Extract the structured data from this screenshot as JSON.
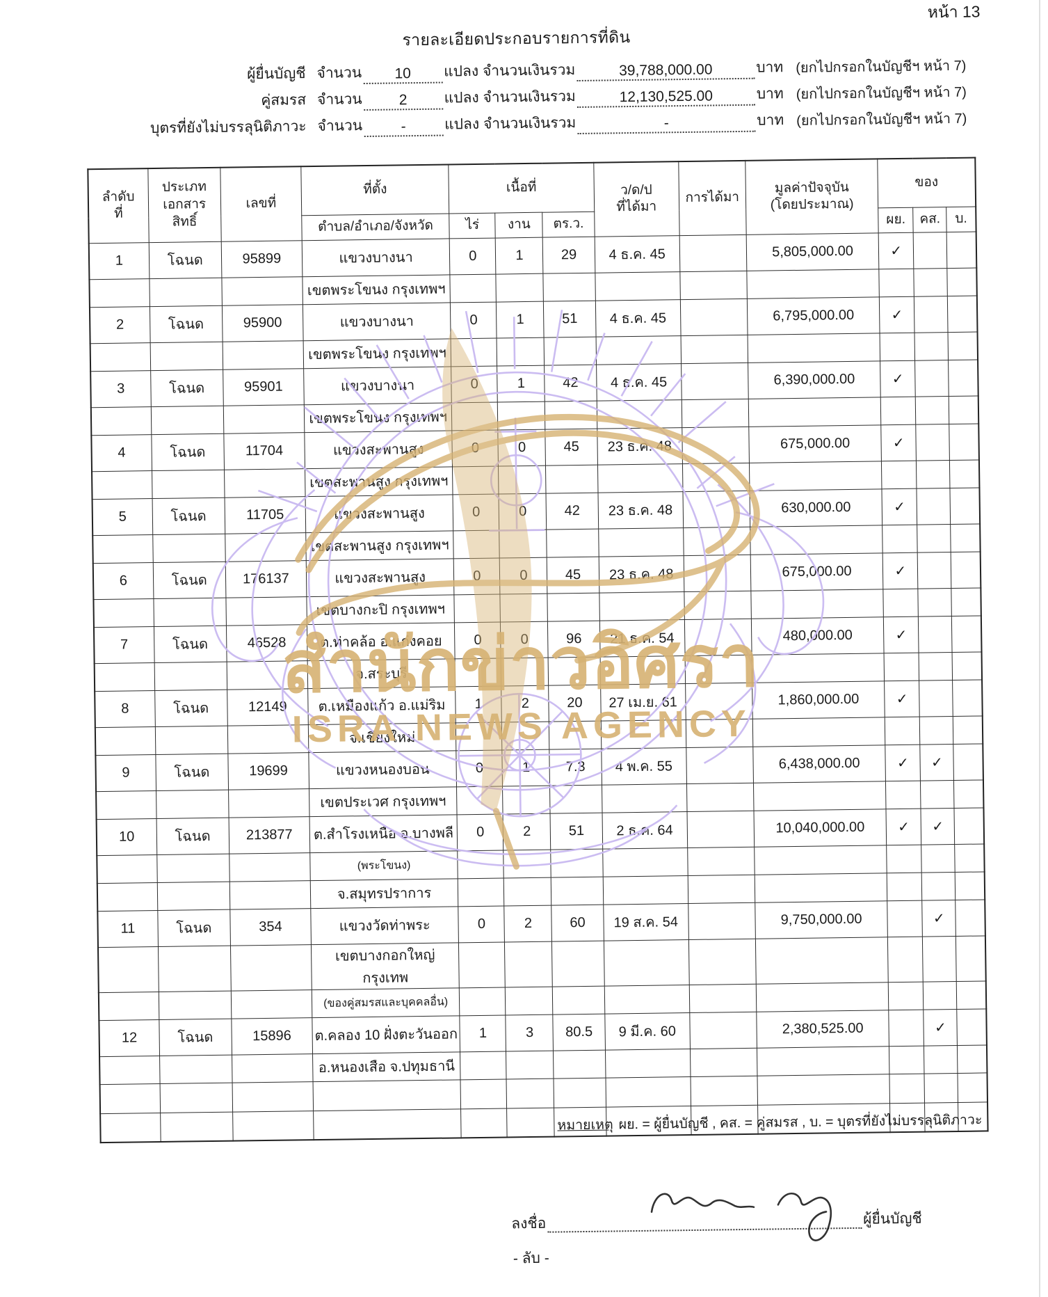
{
  "page": {
    "page_number_label": "หน้า 13",
    "title": "รายละเอียดประกอบรายการที่ดิน",
    "summary_lines": [
      {
        "label": "ผู้ยื่นบัญชี",
        "count_word": "จำนวน",
        "count": "10",
        "mid_words": "แปลง จำนวนเงินรวม",
        "amount": "39,788,000.00",
        "unit": "บาท",
        "note": "(ยกไปกรอกในบัญชีฯ หน้า 7)"
      },
      {
        "label": "คู่สมรส",
        "count_word": "จำนวน",
        "count": "2",
        "mid_words": "แปลง จำนวนเงินรวม",
        "amount": "12,130,525.00",
        "unit": "บาท",
        "note": "(ยกไปกรอกในบัญชีฯ หน้า 7)"
      },
      {
        "label": "บุตรที่ยังไม่บรรลุนิติภาวะ",
        "count_word": "จำนวน",
        "count": "-",
        "mid_words": "แปลง จำนวนเงินรวม",
        "amount": "-",
        "unit": "บาท",
        "note": "(ยกไปกรอกในบัญชีฯ หน้า 7)"
      }
    ]
  },
  "table": {
    "headers": {
      "no_l1": "ลำดับ",
      "no_l2": "ที่",
      "doc_type_l1": "ประเภท",
      "doc_type_l2": "เอกสาร",
      "doc_type_l3": "สิทธิ์",
      "doc_no": "เลขที่",
      "location": "ที่ตั้ง",
      "location_sub": "ตำบล/อำเภอ/จังหวัด",
      "area": "เนื้อที่",
      "rai": "ไร่",
      "ngan": "งาน",
      "sq_wa": "ตร.ว.",
      "date_l1": "ว/ด/ป",
      "date_l2": "ที่ได้มา",
      "acquisition": "การได้มา",
      "value_l1": "มูลค่าปัจจุบัน",
      "value_l2": "(โดยประมาณ)",
      "owner": "ของ",
      "owner_filer": "ผย.",
      "owner_spouse": "คส.",
      "owner_child": "บ."
    },
    "check_glyph": "✓",
    "empty_rows": 2,
    "entries": [
      {
        "no": "1",
        "doc_type": "โฉนด",
        "doc_no": "95899",
        "location_lines": [
          "แขวงบางนา",
          "เขตพระโขนง กรุงเทพฯ"
        ],
        "rai": "0",
        "ngan": "1",
        "sq_wa": "29",
        "date_acquired": "4 ธ.ค. 45",
        "acquisition": "",
        "value": "5,805,000.00",
        "owner_filer": true,
        "owner_spouse": false,
        "owner_child": false
      },
      {
        "no": "2",
        "doc_type": "โฉนด",
        "doc_no": "95900",
        "location_lines": [
          "แขวงบางนา",
          "เขตพระโขนง กรุงเทพฯ"
        ],
        "rai": "0",
        "ngan": "1",
        "sq_wa": "51",
        "date_acquired": "4 ธ.ค. 45",
        "acquisition": "",
        "value": "6,795,000.00",
        "owner_filer": true,
        "owner_spouse": false,
        "owner_child": false
      },
      {
        "no": "3",
        "doc_type": "โฉนด",
        "doc_no": "95901",
        "location_lines": [
          "แขวงบางนา",
          "เขตพระโขนง กรุงเทพฯ"
        ],
        "rai": "0",
        "ngan": "1",
        "sq_wa": "42",
        "date_acquired": "4 ธ.ค. 45",
        "acquisition": "",
        "value": "6,390,000.00",
        "owner_filer": true,
        "owner_spouse": false,
        "owner_child": false
      },
      {
        "no": "4",
        "doc_type": "โฉนด",
        "doc_no": "11704",
        "location_lines": [
          "แขวงสะพานสูง",
          "เขตสะพานสูง กรุงเทพฯ"
        ],
        "rai": "0",
        "ngan": "0",
        "sq_wa": "45",
        "date_acquired": "23 ธ.ค. 48",
        "acquisition": "",
        "value": "675,000.00",
        "owner_filer": true,
        "owner_spouse": false,
        "owner_child": false
      },
      {
        "no": "5",
        "doc_type": "โฉนด",
        "doc_no": "11705",
        "location_lines": [
          "แขวงสะพานสูง",
          "เขตสะพานสูง กรุงเทพฯ"
        ],
        "rai": "0",
        "ngan": "0",
        "sq_wa": "42",
        "date_acquired": "23 ธ.ค. 48",
        "acquisition": "",
        "value": "630,000.00",
        "owner_filer": true,
        "owner_spouse": false,
        "owner_child": false
      },
      {
        "no": "6",
        "doc_type": "โฉนด",
        "doc_no": "176137",
        "location_lines": [
          "แขวงสะพานสูง",
          "เขตบางกะปิ กรุงเทพฯ"
        ],
        "rai": "0",
        "ngan": "0",
        "sq_wa": "45",
        "date_acquired": "23 ธ.ค. 48",
        "acquisition": "",
        "value": "675,000.00",
        "owner_filer": true,
        "owner_spouse": false,
        "owner_child": false
      },
      {
        "no": "7",
        "doc_type": "โฉนด",
        "doc_no": "46528",
        "location_lines": [
          "ต.ท่าคล้อ อ.แก่งคอย",
          "จ.สระบุรี"
        ],
        "rai": "0",
        "ngan": "0",
        "sq_wa": "96",
        "date_acquired": "21 ธ.ค. 54",
        "acquisition": "",
        "value": "480,000.00",
        "owner_filer": true,
        "owner_spouse": false,
        "owner_child": false
      },
      {
        "no": "8",
        "doc_type": "โฉนด",
        "doc_no": "12149",
        "location_lines": [
          "ต.เหมืองแก้ว อ.แม่ริม",
          "จ.เชียงใหม่"
        ],
        "rai": "1",
        "ngan": "2",
        "sq_wa": "20",
        "date_acquired": "27 เม.ย. 61",
        "acquisition": "",
        "value": "1,860,000.00",
        "owner_filer": true,
        "owner_spouse": false,
        "owner_child": false
      },
      {
        "no": "9",
        "doc_type": "โฉนด",
        "doc_no": "19699",
        "location_lines": [
          "แขวงหนองบอน",
          "เขตประเวศ กรุงเทพฯ"
        ],
        "rai": "0",
        "ngan": "1",
        "sq_wa": "7.3",
        "date_acquired": "4 พ.ค. 55",
        "acquisition": "",
        "value": "6,438,000.00",
        "owner_filer": true,
        "owner_spouse": true,
        "owner_child": false
      },
      {
        "no": "10",
        "doc_type": "โฉนด",
        "doc_no": "213877",
        "location_lines": [
          "ต.สำโรงเหนือ อ.บางพลี",
          "(พระโขนง)",
          "จ.สมุทรปราการ"
        ],
        "rai": "0",
        "ngan": "2",
        "sq_wa": "51",
        "date_acquired": "2 ธ.ค. 64",
        "acquisition": "",
        "value": "10,040,000.00",
        "owner_filer": true,
        "owner_spouse": true,
        "owner_child": false
      },
      {
        "no": "11",
        "doc_type": "โฉนด",
        "doc_no": "354",
        "location_lines": [
          "แขวงวัดท่าพระ",
          "เขตบางกอกใหญ่ กรุงเทพ",
          "(ของคู่สมรสและบุคคลอื่น)"
        ],
        "rai": "0",
        "ngan": "2",
        "sq_wa": "60",
        "date_acquired": "19 ส.ค. 54",
        "acquisition": "",
        "value": "9,750,000.00",
        "owner_filer": false,
        "owner_spouse": true,
        "owner_child": false
      },
      {
        "no": "12",
        "doc_type": "โฉนด",
        "doc_no": "15896",
        "location_lines": [
          "ต.คลอง 10 ฝั่งตะวันออก",
          "อ.หนองเสือ จ.ปทุมธานี"
        ],
        "rai": "1",
        "ngan": "3",
        "sq_wa": "80.5",
        "date_acquired": "9 มี.ค. 60",
        "acquisition": "",
        "value": "2,380,525.00",
        "owner_filer": false,
        "owner_spouse": true,
        "owner_child": false
      }
    ]
  },
  "footer": {
    "note_label": "หมายเหตุ",
    "note_text": "ผย. = ผู้ยื่นบัญชี , คส. = คู่สมรส , บ. = บุตรที่ยังไม่บรรลุนิติภาวะ",
    "sign_label": "ลงชื่อ",
    "signer_label": "ผู้ยื่นบัญชี",
    "secret_label": "- ลับ -"
  },
  "watermark": {
    "line1": "สำนักข่าวอิศรา",
    "line2": "ISRA NEWS AGENCY",
    "purple_hex": "#c9b9f1",
    "gold_hex": "#d6b273"
  }
}
